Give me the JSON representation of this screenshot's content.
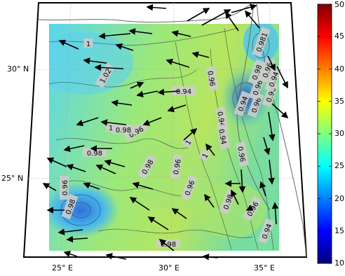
{
  "chart_data": {
    "type": "heatmap",
    "title": "",
    "xlabel": "",
    "ylabel": "",
    "map_projection": "conic",
    "longitude_ticks": [
      {
        "value": 25,
        "label": "25° E"
      },
      {
        "value": 30,
        "label": "30° E"
      },
      {
        "value": 35,
        "label": "35° E"
      }
    ],
    "latitude_ticks": [
      {
        "value": 30,
        "label": "30° N"
      },
      {
        "value": 25,
        "label": "25° N"
      }
    ],
    "colorbar": {
      "range": [
        10,
        50
      ],
      "ticks": [
        10,
        15,
        20,
        25,
        30,
        35,
        40,
        45,
        50
      ],
      "colormap": "jet"
    },
    "contour_labels": [
      "1",
      "1.02",
      "0.94",
      "0.96",
      "0.94",
      "0.94",
      "0.96",
      "0.98",
      "0.98",
      "0.96",
      "1",
      "1",
      "0.96",
      "0.98",
      "0.96",
      "0.96",
      "0.98",
      "0.96",
      "0.98",
      "0.94",
      "0.98",
      "1",
      "0.96",
      "0.94",
      "0.96",
      "0.98",
      "0.96",
      "0.981",
      "0.96",
      "0.94"
    ],
    "field_description": "wind vectors (black arrows) over a colored scalar field with contour lines; dominant field values ~25-33 (cyan to yellow), with a local minimum (~20-24) in the southwest and high/low values in the northeast near the coast",
    "grid": true,
    "colors": {
      "cbar_top": "#7f0000",
      "cbar_bottom": "#00007f",
      "arrow": "#000000",
      "contour": "#444444"
    }
  }
}
